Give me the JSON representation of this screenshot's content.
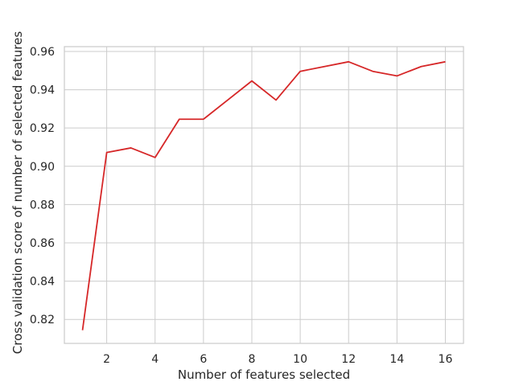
{
  "chart_data": {
    "type": "line",
    "title": "",
    "xlabel": "Number of features selected",
    "ylabel": "Cross validation score of number of selected features",
    "xlim": [
      0.25,
      16.75
    ],
    "ylim": [
      0.8075,
      0.9625
    ],
    "x_ticks": [
      2,
      4,
      6,
      8,
      10,
      12,
      14,
      16
    ],
    "x_tick_labels": [
      "2",
      "4",
      "6",
      "8",
      "10",
      "12",
      "14",
      "16"
    ],
    "y_ticks": [
      0.82,
      0.84,
      0.86,
      0.88,
      0.9,
      0.92,
      0.94,
      0.96
    ],
    "y_tick_labels": [
      "0.82",
      "0.84",
      "0.86",
      "0.88",
      "0.90",
      "0.92",
      "0.94",
      "0.96"
    ],
    "grid": true,
    "legend": "none",
    "series": [
      {
        "color": "#d62728",
        "x": [
          1,
          2,
          3,
          4,
          5,
          6,
          7,
          8,
          9,
          10,
          11,
          12,
          13,
          14,
          15,
          16
        ],
        "values": [
          0.8144,
          0.9072,
          0.9096,
          0.9046,
          0.9246,
          0.9246,
          0.9346,
          0.9446,
          0.9346,
          0.9496,
          0.9521,
          0.9546,
          0.9496,
          0.9472,
          0.9521,
          0.9546
        ]
      }
    ]
  }
}
